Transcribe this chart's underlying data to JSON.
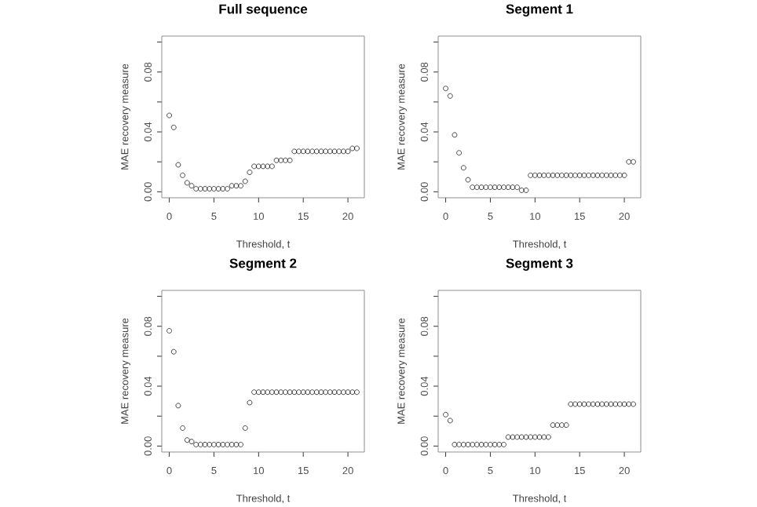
{
  "chart_data": [
    {
      "type": "scatter",
      "title": "Full sequence",
      "xlabel": "Threshold, t",
      "ylabel": "MAE recovery measure",
      "marker": "circle",
      "color": "#000000",
      "grid": false,
      "xlim": [
        -0.84,
        21.84
      ],
      "ylim": [
        -0.004,
        0.104
      ],
      "xticks": [
        0,
        5,
        10,
        15,
        20
      ],
      "yticks": [
        {
          "value": 0,
          "label": "0.00"
        },
        {
          "value": 0.02,
          "label": null
        },
        {
          "value": 0.04,
          "label": "0.04"
        },
        {
          "value": 0.06,
          "label": null
        },
        {
          "value": 0.08,
          "label": "0.08"
        },
        {
          "value": 0.1,
          "label": null
        }
      ],
      "x": [
        0,
        0.5,
        1,
        1.5,
        2,
        2.5,
        3,
        3.5,
        4,
        4.5,
        5,
        5.5,
        6,
        6.5,
        7,
        7.5,
        8,
        8.5,
        9,
        9.5,
        10,
        10.5,
        11,
        11.5,
        12,
        12.5,
        13,
        13.5,
        14,
        14.5,
        15,
        15.5,
        16,
        16.5,
        17,
        17.5,
        18,
        18.5,
        19,
        19.5,
        20,
        20.5,
        21
      ],
      "values": [
        0.051,
        0.043,
        0.018,
        0.011,
        0.006,
        0.004,
        0.002,
        0.002,
        0.002,
        0.002,
        0.002,
        0.002,
        0.002,
        0.002,
        0.004,
        0.004,
        0.004,
        0.007,
        0.013,
        0.017,
        0.017,
        0.017,
        0.017,
        0.017,
        0.021,
        0.021,
        0.021,
        0.021,
        0.027,
        0.027,
        0.027,
        0.027,
        0.027,
        0.027,
        0.027,
        0.027,
        0.027,
        0.027,
        0.027,
        0.027,
        0.027,
        0.029,
        0.029
      ]
    },
    {
      "type": "scatter",
      "title": "Segment 1",
      "xlabel": "Threshold, t",
      "ylabel": "MAE recovery measure",
      "marker": "circle",
      "color": "#000000",
      "grid": false,
      "xlim": [
        -0.84,
        21.84
      ],
      "ylim": [
        -0.004,
        0.104
      ],
      "xticks": [
        0,
        5,
        10,
        15,
        20
      ],
      "yticks": [
        {
          "value": 0,
          "label": "0.00"
        },
        {
          "value": 0.02,
          "label": null
        },
        {
          "value": 0.04,
          "label": "0.04"
        },
        {
          "value": 0.06,
          "label": null
        },
        {
          "value": 0.08,
          "label": "0.08"
        },
        {
          "value": 0.1,
          "label": null
        }
      ],
      "x": [
        0,
        0.5,
        1,
        1.5,
        2,
        2.5,
        3,
        3.5,
        4,
        4.5,
        5,
        5.5,
        6,
        6.5,
        7,
        7.5,
        8,
        8.5,
        9,
        9.5,
        10,
        10.5,
        11,
        11.5,
        12,
        12.5,
        13,
        13.5,
        14,
        14.5,
        15,
        15.5,
        16,
        16.5,
        17,
        17.5,
        18,
        18.5,
        19,
        19.5,
        20,
        20.5,
        21
      ],
      "values": [
        0.069,
        0.064,
        0.038,
        0.026,
        0.016,
        0.008,
        0.003,
        0.003,
        0.003,
        0.003,
        0.003,
        0.003,
        0.003,
        0.003,
        0.003,
        0.003,
        0.003,
        0.001,
        0.001,
        0.011,
        0.011,
        0.011,
        0.011,
        0.011,
        0.011,
        0.011,
        0.011,
        0.011,
        0.011,
        0.011,
        0.011,
        0.011,
        0.011,
        0.011,
        0.011,
        0.011,
        0.011,
        0.011,
        0.011,
        0.011,
        0.011,
        0.02,
        0.02
      ]
    },
    {
      "type": "scatter",
      "title": "Segment 2",
      "xlabel": "Threshold, t",
      "ylabel": "MAE recovery measure",
      "marker": "circle",
      "color": "#000000",
      "grid": false,
      "xlim": [
        -0.84,
        21.84
      ],
      "ylim": [
        -0.004,
        0.104
      ],
      "xticks": [
        0,
        5,
        10,
        15,
        20
      ],
      "yticks": [
        {
          "value": 0,
          "label": "0.00"
        },
        {
          "value": 0.02,
          "label": null
        },
        {
          "value": 0.04,
          "label": "0.04"
        },
        {
          "value": 0.06,
          "label": null
        },
        {
          "value": 0.08,
          "label": "0.08"
        },
        {
          "value": 0.1,
          "label": null
        }
      ],
      "x": [
        0,
        0.5,
        1,
        1.5,
        2,
        2.5,
        3,
        3.5,
        4,
        4.5,
        5,
        5.5,
        6,
        6.5,
        7,
        7.5,
        8,
        8.5,
        9,
        9.5,
        10,
        10.5,
        11,
        11.5,
        12,
        12.5,
        13,
        13.5,
        14,
        14.5,
        15,
        15.5,
        16,
        16.5,
        17,
        17.5,
        18,
        18.5,
        19,
        19.5,
        20,
        20.5,
        21
      ],
      "values": [
        0.077,
        0.063,
        0.027,
        0.012,
        0.004,
        0.003,
        0.001,
        0.001,
        0.001,
        0.001,
        0.001,
        0.001,
        0.001,
        0.001,
        0.001,
        0.001,
        0.001,
        0.012,
        0.029,
        0.036,
        0.036,
        0.036,
        0.036,
        0.036,
        0.036,
        0.036,
        0.036,
        0.036,
        0.036,
        0.036,
        0.036,
        0.036,
        0.036,
        0.036,
        0.036,
        0.036,
        0.036,
        0.036,
        0.036,
        0.036,
        0.036,
        0.036,
        0.036
      ]
    },
    {
      "type": "scatter",
      "title": "Segment 3",
      "xlabel": "Threshold, t",
      "ylabel": "MAE recovery measure",
      "marker": "circle",
      "color": "#000000",
      "grid": false,
      "xlim": [
        -0.84,
        21.84
      ],
      "ylim": [
        -0.004,
        0.104
      ],
      "xticks": [
        0,
        5,
        10,
        15,
        20
      ],
      "yticks": [
        {
          "value": 0,
          "label": "0.00"
        },
        {
          "value": 0.02,
          "label": null
        },
        {
          "value": 0.04,
          "label": "0.04"
        },
        {
          "value": 0.06,
          "label": null
        },
        {
          "value": 0.08,
          "label": "0.08"
        },
        {
          "value": 0.1,
          "label": null
        }
      ],
      "x": [
        0,
        0.5,
        1,
        1.5,
        2,
        2.5,
        3,
        3.5,
        4,
        4.5,
        5,
        5.5,
        6,
        6.5,
        7,
        7.5,
        8,
        8.5,
        9,
        9.5,
        10,
        10.5,
        11,
        11.5,
        12,
        12.5,
        13,
        13.5,
        14,
        14.5,
        15,
        15.5,
        16,
        16.5,
        17,
        17.5,
        18,
        18.5,
        19,
        19.5,
        20,
        20.5,
        21
      ],
      "values": [
        0.021,
        0.017,
        0.001,
        0.001,
        0.001,
        0.001,
        0.001,
        0.001,
        0.001,
        0.001,
        0.001,
        0.001,
        0.001,
        0.001,
        0.006,
        0.006,
        0.006,
        0.006,
        0.006,
        0.006,
        0.006,
        0.006,
        0.006,
        0.006,
        0.014,
        0.014,
        0.014,
        0.014,
        0.028,
        0.028,
        0.028,
        0.028,
        0.028,
        0.028,
        0.028,
        0.028,
        0.028,
        0.028,
        0.028,
        0.028,
        0.028,
        0.028,
        0.028
      ]
    }
  ]
}
